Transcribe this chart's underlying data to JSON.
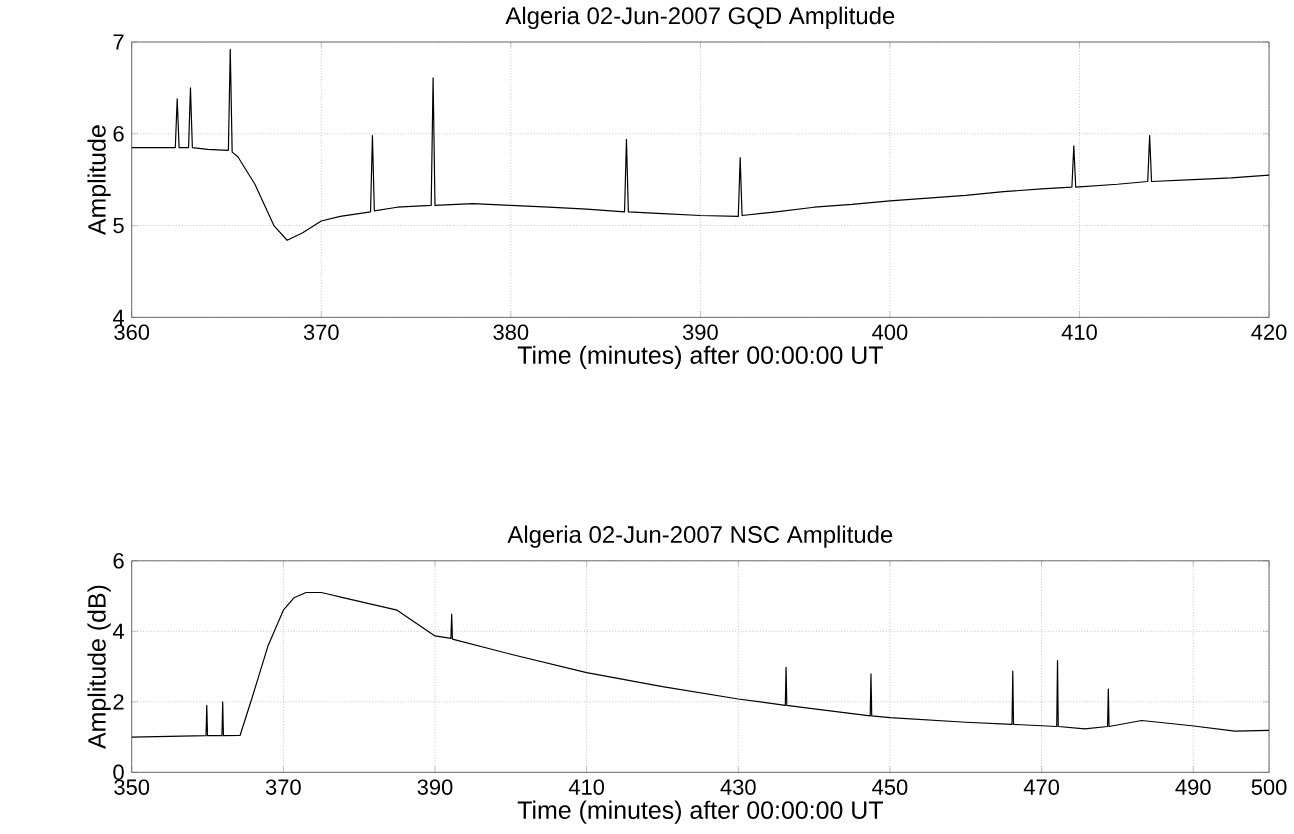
{
  "chart_data": [
    {
      "type": "line",
      "title": "Algeria 02-Jun-2007 GQD Amplitude",
      "xlabel": "Time (minutes) after 00:00:00 UT",
      "ylabel": "Amplitude",
      "xlim": [
        360,
        420
      ],
      "ylim": [
        4,
        7
      ],
      "xticks": [
        360,
        370,
        380,
        390,
        400,
        410,
        420
      ],
      "yticks": [
        4,
        5,
        6,
        7
      ],
      "grid": true,
      "line_style": "solid",
      "marker": "none",
      "series": [
        {
          "color": "#000000",
          "x": [
            360,
            361,
            362.3,
            362.4,
            362.5,
            363,
            363.1,
            363.2,
            364,
            365.1,
            365.2,
            365.3,
            365.6,
            366.5,
            367.5,
            368.2,
            369,
            370,
            371,
            372.6,
            372.7,
            372.8,
            374,
            375.8,
            375.9,
            376,
            378,
            380,
            382,
            384,
            386,
            386.1,
            386.2,
            388,
            390,
            392,
            392.1,
            392.2,
            394,
            396,
            398,
            400,
            402,
            404,
            406,
            408,
            409.6,
            409.7,
            409.8,
            412,
            413.6,
            413.7,
            413.8,
            416,
            418,
            420
          ],
          "values": [
            5.85,
            5.85,
            5.85,
            6.38,
            5.85,
            5.85,
            6.5,
            5.85,
            5.83,
            5.82,
            6.92,
            5.8,
            5.75,
            5.45,
            5.0,
            4.84,
            4.92,
            5.05,
            5.1,
            5.15,
            5.98,
            5.16,
            5.2,
            5.22,
            6.61,
            5.22,
            5.24,
            5.22,
            5.2,
            5.18,
            5.15,
            5.94,
            5.15,
            5.13,
            5.11,
            5.1,
            5.74,
            5.11,
            5.15,
            5.2,
            5.23,
            5.27,
            5.3,
            5.33,
            5.37,
            5.4,
            5.42,
            5.87,
            5.42,
            5.45,
            5.48,
            5.98,
            5.48,
            5.5,
            5.52,
            5.55
          ]
        }
      ]
    },
    {
      "type": "line",
      "title": "Algeria 02-Jun-2007 NSC Amplitude",
      "xlabel": "Time (minutes) after 00:00:00 UT",
      "ylabel": "Amplitude (dB)",
      "xlim": [
        350,
        500
      ],
      "ylim": [
        0,
        6
      ],
      "xticks": [
        350,
        370,
        390,
        410,
        430,
        450,
        470,
        490,
        500
      ],
      "yticks": [
        0,
        2,
        4,
        6
      ],
      "grid": true,
      "line_style": "solid",
      "marker": "none",
      "series": [
        {
          "color": "#000000",
          "x": [
            350,
            355,
            359.8,
            359.9,
            360,
            361.9,
            362,
            362.1,
            364.3,
            366,
            368,
            370,
            371.4,
            373,
            375,
            376,
            378,
            380,
            385,
            390,
            392.1,
            392.2,
            392.3,
            400,
            410,
            420,
            430,
            436.2,
            436.3,
            436.4,
            440,
            447.4,
            447.5,
            447.6,
            450,
            460,
            466.1,
            466.2,
            466.3,
            470,
            472,
            472.1,
            472.2,
            475.7,
            478.7,
            478.8,
            478.9,
            483.2,
            489.8,
            495.5,
            500
          ],
          "values": [
            1.0,
            1.02,
            1.04,
            1.9,
            1.04,
            1.04,
            2.0,
            1.04,
            1.05,
            2.2,
            3.6,
            4.6,
            4.95,
            5.1,
            5.1,
            5.05,
            4.95,
            4.85,
            4.6,
            3.87,
            3.8,
            4.49,
            3.78,
            3.35,
            2.83,
            2.43,
            2.08,
            1.9,
            2.98,
            1.9,
            1.8,
            1.6,
            2.79,
            1.6,
            1.55,
            1.42,
            1.36,
            2.87,
            1.36,
            1.32,
            1.3,
            3.17,
            1.3,
            1.23,
            1.3,
            2.36,
            1.3,
            1.47,
            1.32,
            1.17,
            1.19
          ]
        }
      ]
    }
  ]
}
